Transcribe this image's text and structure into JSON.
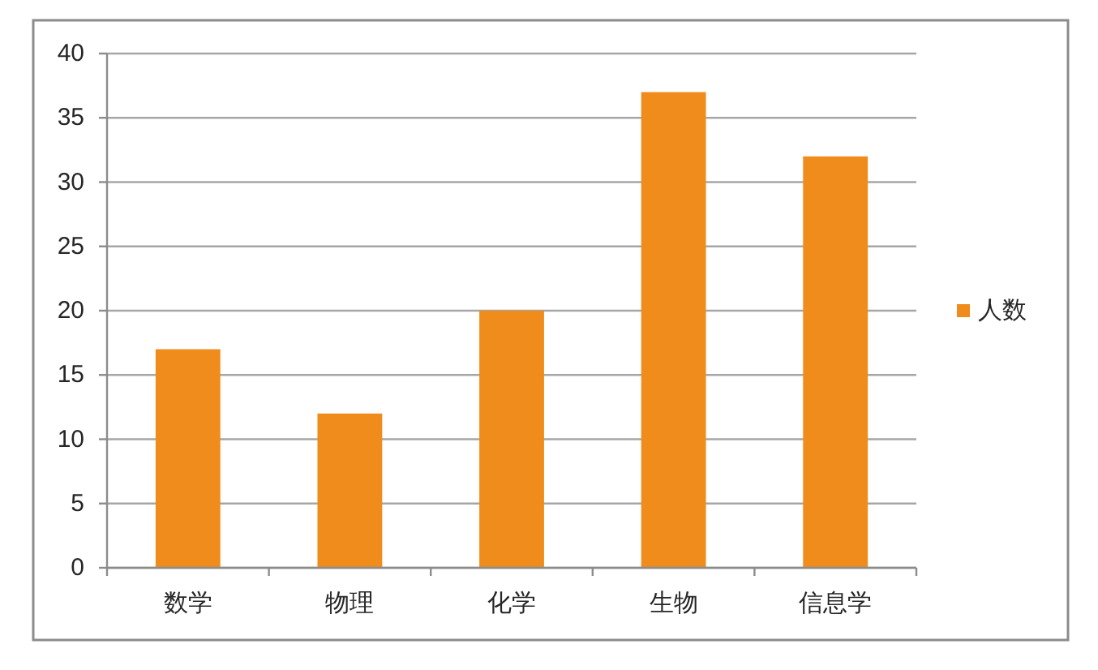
{
  "chart_data": {
    "type": "bar",
    "categories": [
      "数学",
      "物理",
      "化学",
      "生物",
      "信息学"
    ],
    "series": [
      {
        "name": "人数",
        "color": "#f08c1c",
        "values": [
          17,
          12,
          20,
          37,
          32
        ]
      }
    ],
    "ylim": [
      0,
      40
    ],
    "yticks": [
      0,
      5,
      10,
      15,
      20,
      25,
      30,
      35,
      40
    ],
    "grid": "y",
    "legend": "right"
  }
}
